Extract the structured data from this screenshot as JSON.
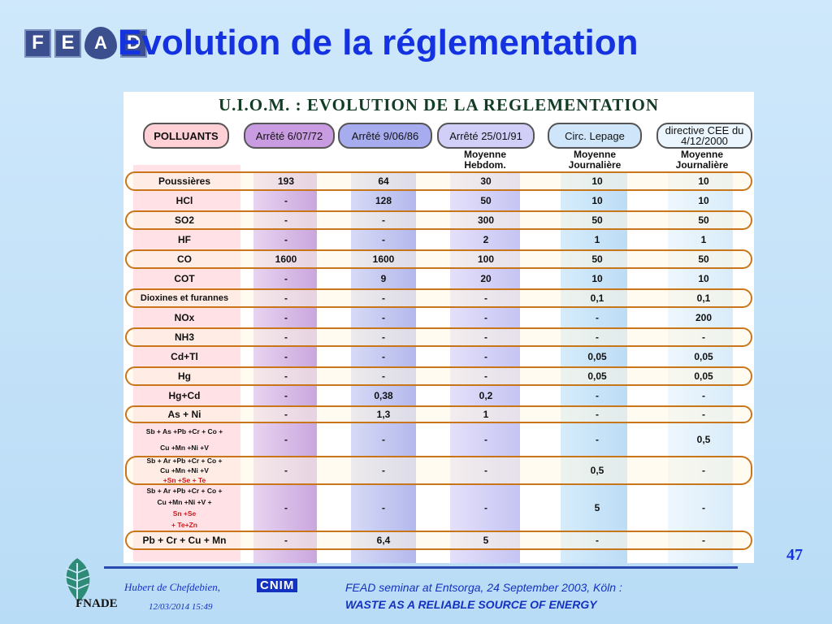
{
  "slide": {
    "title": "Evolution de la réglementation",
    "page_number": "47"
  },
  "logo": {
    "letters": [
      "F",
      "E",
      "A",
      "D"
    ]
  },
  "table": {
    "title": "U.I.O.M. : EVOLUTION DE LA REGLEMENTATION",
    "headers": {
      "polluants": "POLLUANTS",
      "c1": "Arrêté 6/07/72",
      "c2": "Arrêté 9/06/86",
      "c3": "Arrêté 25/01/91",
      "c4": "Circ. Lepage",
      "c5": "directive CEE du 4/12/2000"
    },
    "subheaders": {
      "c3": "Moyenne Hebdom.",
      "c4": "Moyenne Journalière",
      "c5": "Moyenne Journalière"
    },
    "rows": [
      {
        "label": "Poussières",
        "c1": "193",
        "c2": "64",
        "c3": "30",
        "c4": "10",
        "c5": "10"
      },
      {
        "label": "HCl",
        "c1": "-",
        "c2": "128",
        "c3": "50",
        "c4": "10",
        "c5": "10"
      },
      {
        "label": "SO2",
        "c1": "-",
        "c2": "-",
        "c3": "300",
        "c4": "50",
        "c5": "50"
      },
      {
        "label": "HF",
        "c1": "-",
        "c2": "-",
        "c3": "2",
        "c4": "1",
        "c5": "1"
      },
      {
        "label": "CO",
        "c1": "1600",
        "c2": "1600",
        "c3": "100",
        "c4": "50",
        "c5": "50"
      },
      {
        "label": "COT",
        "c1": "-",
        "c2": "9",
        "c3": "20",
        "c4": "10",
        "c5": "10"
      },
      {
        "label": "Dioxines et furannes",
        "c1": "-",
        "c2": "-",
        "c3": "-",
        "c4": "0,1",
        "c5": "0,1"
      },
      {
        "label": "NOx",
        "c1": "-",
        "c2": "-",
        "c3": "-",
        "c4": "-",
        "c5": "200"
      },
      {
        "label": "NH3",
        "c1": "-",
        "c2": "-",
        "c3": "-",
        "c4": "-",
        "c5": "-"
      },
      {
        "label": "Cd+Tl",
        "c1": "-",
        "c2": "-",
        "c3": "-",
        "c4": "0,05",
        "c5": "0,05"
      },
      {
        "label": "Hg",
        "c1": "-",
        "c2": "-",
        "c3": "-",
        "c4": "0,05",
        "c5": "0,05"
      },
      {
        "label": "Hg+Cd",
        "c1": "-",
        "c2": "0,38",
        "c3": "0,2",
        "c4": "-",
        "c5": "-"
      },
      {
        "label": "As + Ni",
        "c1": "-",
        "c2": "1,3",
        "c3": "1",
        "c4": "-",
        "c5": "-"
      },
      {
        "label": "Sb + As +Pb +Cr + Co + Cu +Mn +Ni +V",
        "c1": "-",
        "c2": "-",
        "c3": "-",
        "c4": "-",
        "c5": "0,5"
      },
      {
        "label": "Sb + Ar +Pb +Cr + Co + Cu +Mn +Ni +V +Sn +Se + Te",
        "c1": "-",
        "c2": "-",
        "c3": "-",
        "c4": "0,5",
        "c5": "-"
      },
      {
        "label": "Sb + Ar +Pb +Cr + Co + Cu +Mn +Ni +V +Sn +Se + Te+Zn",
        "c1": "-",
        "c2": "-",
        "c3": "-",
        "c4": "5",
        "c5": "-"
      },
      {
        "label": "Pb + Cr + Cu + Mn",
        "c1": "-",
        "c2": "6,4",
        "c3": "5",
        "c4": "-",
        "c5": "-"
      }
    ],
    "ml_rows": {
      "r13": [
        "Sb + As +Pb +Cr + Co +",
        "Cu +Mn +Ni +V"
      ],
      "r14": [
        "Sb + Ar +Pb +Cr + Co +",
        "Cu +Mn +Ni +V ",
        "+Sn +Se + Te"
      ],
      "r15": [
        "Sb + Ar +Pb +Cr + Co +",
        "Cu +Mn +Ni +V +",
        "Sn +Se",
        "+ Te+Zn"
      ]
    }
  },
  "footer": {
    "author": "Hubert de Chefdebien,",
    "company": "CNIM",
    "date": "12/03/2014 15:49",
    "seminar": "FEAD seminar at Entsorga, 24 September 2003, Köln :",
    "theme": "WASTE AS A RELIABLE SOURCE OF ENERGY",
    "org": "FNADE"
  },
  "colors": {
    "title": "#1432e0",
    "pill_border": "#c9761a",
    "label_bg": "#ffe1e6"
  }
}
